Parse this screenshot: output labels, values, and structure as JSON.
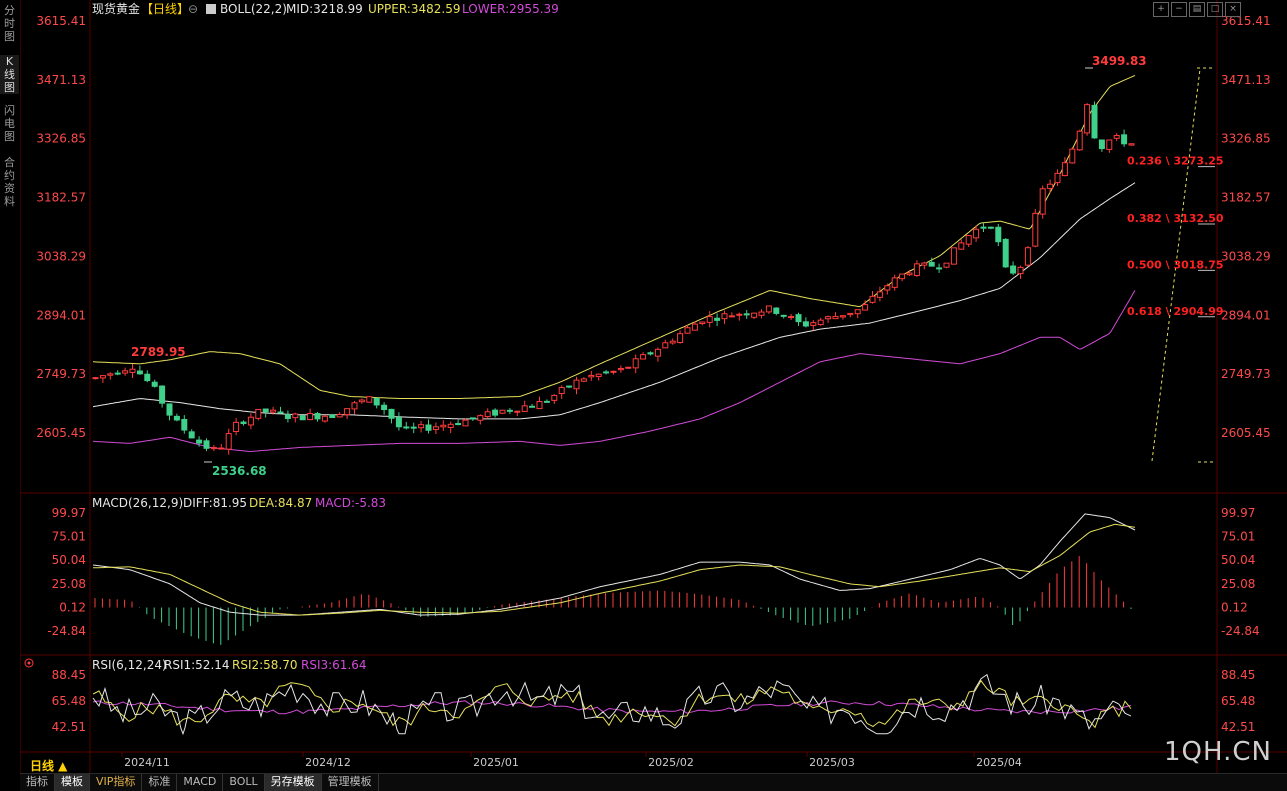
{
  "sidebar": {
    "items": [
      {
        "label": "分\n时\n图",
        "active": false
      },
      {
        "label": "K\n线\n图",
        "active": true
      },
      {
        "label": "闪\n电\n图",
        "active": false
      },
      {
        "label": "合\n约\n资\n料",
        "active": false
      }
    ]
  },
  "header": {
    "symbol": "现货黄金",
    "period_tag": "【日线】",
    "boll_label": "BOLL(22,2)",
    "mid": "MID:3218.99",
    "upper": "UPPER:3482.59",
    "lower": "LOWER:2955.39"
  },
  "toolbar": {
    "icons": [
      "add-window-icon",
      "remove-window-icon",
      "layout-icon",
      "maximize-icon",
      "close-icon"
    ]
  },
  "main_axis_ticks": [
    "3615.41",
    "3471.13",
    "3326.85",
    "3182.57",
    "3038.29",
    "2894.01",
    "2749.73",
    "2605.45"
  ],
  "annotations": {
    "high": "3499.83",
    "low": "2536.68",
    "prior_high": "2789.95"
  },
  "fib_levels": [
    {
      "label": "0.236 \\ 3273.25",
      "value": 3273.25
    },
    {
      "label": "0.382 \\ 3132.50",
      "value": 3132.5
    },
    {
      "label": "0.500 \\ 3018.75",
      "value": 3018.75
    },
    {
      "label": "0.618 \\ 2904.99",
      "value": 2904.99
    }
  ],
  "macd_header": {
    "name": "MACD(26,12,9)",
    "diff": "DIFF:81.95",
    "dea": "DEA:84.87",
    "macd": "MACD:-5.83"
  },
  "macd_axis_ticks": [
    "99.97",
    "75.01",
    "50.04",
    "25.08",
    "0.12",
    "-24.84"
  ],
  "rsi_header": {
    "name": "RSI(6,12,24)",
    "rsi1": "RSI1:52.14",
    "rsi2": "RSI2:58.70",
    "rsi3": "RSI3:61.64"
  },
  "rsi_axis_ticks": [
    "88.45",
    "65.48",
    "42.51"
  ],
  "x_axis_labels": [
    "2024/11",
    "2024/12",
    "2025/01",
    "2025/02",
    "2025/03",
    "2025/04"
  ],
  "period_label": "日线 ▲",
  "watermark": "1QH.CN",
  "bottom_tabs": [
    {
      "label": "指标",
      "active": false,
      "vip": false
    },
    {
      "label": "模板",
      "active": true,
      "vip": false
    },
    {
      "label": "VIP指标",
      "active": false,
      "vip": true
    },
    {
      "label": "标准",
      "active": false,
      "vip": false
    },
    {
      "label": "MACD",
      "active": false,
      "vip": false
    },
    {
      "label": "BOLL",
      "active": false,
      "vip": false
    },
    {
      "label": "另存模板",
      "active": true,
      "vip": false
    },
    {
      "label": "管理模板",
      "active": false,
      "vip": false
    }
  ],
  "colors": {
    "up": "#ff3b3b",
    "down": "#3fd08a",
    "mid_line": "#e8e8e8",
    "upper_line": "#e6e05a",
    "lower_line": "#d24bd8",
    "dea_line": "#e6e05a",
    "rsi2": "#e6e05a",
    "rsi3": "#d24bd8",
    "fib_text": "#ff2020",
    "axis_text": "#ff4a4a",
    "grid_border": "#5a0000"
  },
  "chart_data": {
    "type": "candlestick",
    "x_range": [
      "2024/10",
      "2025/04"
    ],
    "ylim": [
      2536.68,
      3615.41
    ],
    "key_points": [
      {
        "label": "2789.95",
        "value": 2789.95
      },
      {
        "label": "2536.68",
        "value": 2536.68
      },
      {
        "label": "3499.83",
        "value": 3499.83
      }
    ],
    "series": [
      {
        "name": "MID",
        "last": 3218.99
      },
      {
        "name": "UPPER",
        "last": 3482.59
      },
      {
        "name": "LOWER",
        "last": 2955.39
      }
    ],
    "macd": {
      "diff": 81.95,
      "dea": 84.87,
      "macd": -5.83,
      "ylim": [
        -24.84,
        99.97
      ]
    },
    "rsi": {
      "rsi1": 52.14,
      "rsi2": 58.7,
      "rsi3": 61.64,
      "ylim": [
        42.51,
        88.45
      ]
    }
  }
}
